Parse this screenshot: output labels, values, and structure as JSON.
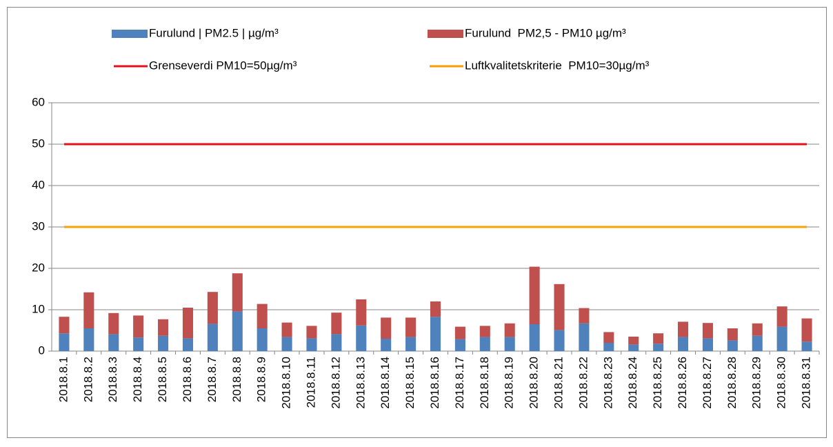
{
  "chart_data": {
    "type": "bar",
    "stacked": true,
    "categories": [
      "2018.8.1",
      "2018.8.2",
      "2018.8.3",
      "2018.8.4",
      "2018.8.5",
      "2018.8.6",
      "2018.8.7",
      "2018.8.8",
      "2018.8.9",
      "2018.8.10",
      "2018.8.11",
      "2018.8.12",
      "2018.8.13",
      "2018.8.14",
      "2018.8.15",
      "2018.8.16",
      "2018.8.17",
      "2018.8.18",
      "2018.8.19",
      "2018.8.20",
      "2018.8.21",
      "2018.8.22",
      "2018.8.23",
      "2018.8.24",
      "2018.8.25",
      "2018.8.26",
      "2018.8.27",
      "2018.8.28",
      "2018.8.29",
      "2018.8.30",
      "2018.8.31"
    ],
    "series": [
      {
        "name": "Furulund | PM2.5 | µg/m³",
        "type": "bar",
        "color": "#4f81bd",
        "values": [
          4.3,
          5.5,
          4.1,
          3.3,
          3.7,
          3.1,
          6.6,
          9.6,
          5.5,
          3.4,
          3.1,
          4.1,
          6.2,
          3.0,
          3.4,
          8.3,
          2.9,
          3.4,
          3.4,
          6.5,
          5.1,
          6.7,
          2.0,
          1.6,
          1.8,
          3.4,
          3.1,
          2.6,
          3.7,
          5.9,
          2.3
        ]
      },
      {
        "name": "Furulund  PM2,5 - PM10 µg/m³",
        "type": "bar",
        "color": "#c0504d",
        "values": [
          4.0,
          8.7,
          5.1,
          5.3,
          4.0,
          7.4,
          7.7,
          9.2,
          5.9,
          3.5,
          3.0,
          5.2,
          6.3,
          5.1,
          4.7,
          3.7,
          3.0,
          2.7,
          3.3,
          13.9,
          11.1,
          3.7,
          2.6,
          1.9,
          2.5,
          3.7,
          3.7,
          2.9,
          3.0,
          4.9,
          5.6
        ]
      },
      {
        "name": "Grenseverdi PM10=50µg/m³",
        "type": "line",
        "color": "#e3101a",
        "values": [
          50,
          50,
          50,
          50,
          50,
          50,
          50,
          50,
          50,
          50,
          50,
          50,
          50,
          50,
          50,
          50,
          50,
          50,
          50,
          50,
          50,
          50,
          50,
          50,
          50,
          50,
          50,
          50,
          50,
          50,
          50
        ]
      },
      {
        "name": "Luftkvalitetskriterie  PM10=30µg/m³",
        "type": "line",
        "color": "#f7a000",
        "values": [
          30,
          30,
          30,
          30,
          30,
          30,
          30,
          30,
          30,
          30,
          30,
          30,
          30,
          30,
          30,
          30,
          30,
          30,
          30,
          30,
          30,
          30,
          30,
          30,
          30,
          30,
          30,
          30,
          30,
          30,
          30
        ]
      }
    ],
    "ylim": [
      0,
      60
    ],
    "yticks": [
      0,
      10,
      20,
      30,
      40,
      50,
      60
    ],
    "grid": true,
    "legend": "top"
  }
}
